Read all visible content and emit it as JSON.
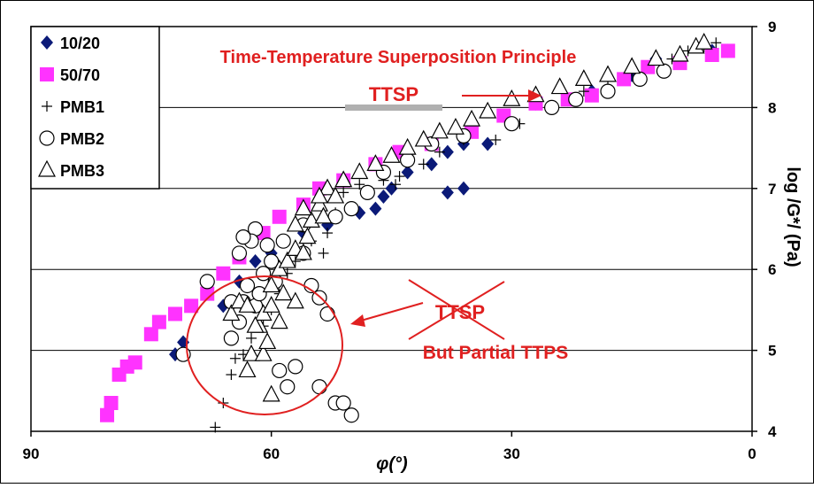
{
  "chart_data": {
    "type": "scatter",
    "title": "",
    "xlabel": "φ(°)",
    "ylabel": "log /G*/ (Pa)",
    "xlim": [
      90,
      0
    ],
    "ylim": [
      4,
      9
    ],
    "x_reversed": true,
    "y_axis_side": "right",
    "x_ticks": [
      "90",
      "60",
      "30",
      "0"
    ],
    "y_ticks": [
      "4",
      "5",
      "6",
      "7",
      "8",
      "9"
    ],
    "grid": "horizontal",
    "legend_position": "top-left",
    "series": [
      {
        "name": "10/20",
        "marker": "diamond",
        "color": "#0b1a78",
        "points": [
          [
            72,
            4.95
          ],
          [
            71,
            5.1
          ],
          [
            66,
            5.55
          ],
          [
            64,
            5.85
          ],
          [
            62,
            6.1
          ],
          [
            60,
            6.2
          ],
          [
            56,
            6.45
          ],
          [
            53,
            6.55
          ],
          [
            49,
            6.7
          ],
          [
            47,
            6.75
          ],
          [
            46,
            6.9
          ],
          [
            45,
            7.0
          ],
          [
            43,
            7.2
          ],
          [
            40,
            7.3
          ],
          [
            38,
            7.45
          ],
          [
            36,
            7.55
          ],
          [
            33,
            7.55
          ],
          [
            30,
            7.8
          ],
          [
            27,
            8.05
          ],
          [
            23,
            8.1
          ],
          [
            20,
            8.2
          ],
          [
            15,
            8.4
          ],
          [
            12,
            8.6
          ],
          [
            9,
            8.6
          ],
          [
            5,
            8.7
          ],
          [
            3,
            8.7
          ],
          [
            38,
            6.95
          ],
          [
            36,
            7.0
          ]
        ]
      },
      {
        "name": "50/70",
        "marker": "square",
        "color": "#ff33ff",
        "points": [
          [
            80.5,
            4.2
          ],
          [
            80,
            4.35
          ],
          [
            79,
            4.7
          ],
          [
            78,
            4.8
          ],
          [
            77,
            4.85
          ],
          [
            75,
            5.2
          ],
          [
            74,
            5.35
          ],
          [
            72,
            5.45
          ],
          [
            70,
            5.55
          ],
          [
            68,
            5.7
          ],
          [
            66,
            5.95
          ],
          [
            64,
            6.15
          ],
          [
            61,
            6.45
          ],
          [
            59,
            6.65
          ],
          [
            56,
            6.8
          ],
          [
            54,
            7.0
          ],
          [
            51,
            7.1
          ],
          [
            47,
            7.3
          ],
          [
            44,
            7.45
          ],
          [
            40,
            7.55
          ],
          [
            35,
            7.7
          ],
          [
            31,
            7.9
          ],
          [
            27,
            8.05
          ],
          [
            23,
            8.1
          ],
          [
            20,
            8.15
          ],
          [
            16,
            8.35
          ],
          [
            13,
            8.5
          ],
          [
            9,
            8.55
          ],
          [
            5,
            8.65
          ],
          [
            3,
            8.7
          ]
        ]
      },
      {
        "name": "PMB1",
        "marker": "plus",
        "color": "#000000",
        "points": [
          [
            67,
            4.05
          ],
          [
            66,
            4.35
          ],
          [
            65,
            4.7
          ],
          [
            64.5,
            4.9
          ],
          [
            63.5,
            4.95
          ],
          [
            63,
            4.75
          ],
          [
            62.5,
            5.15
          ],
          [
            61,
            5.3
          ],
          [
            60,
            5.5
          ],
          [
            59,
            5.7
          ],
          [
            58,
            5.95
          ],
          [
            57,
            6.1
          ],
          [
            55,
            6.35
          ],
          [
            53.5,
            6.2
          ],
          [
            53,
            6.45
          ],
          [
            52,
            6.7
          ],
          [
            51,
            6.95
          ],
          [
            49,
            7.05
          ],
          [
            48,
            6.95
          ],
          [
            46,
            7.1
          ],
          [
            44.5,
            7.05
          ],
          [
            44,
            7.15
          ],
          [
            41,
            7.3
          ],
          [
            39,
            7.45
          ],
          [
            36,
            7.6
          ],
          [
            32,
            7.6
          ],
          [
            29,
            7.8
          ],
          [
            25,
            8.0
          ],
          [
            21,
            8.2
          ],
          [
            18,
            8.35
          ],
          [
            15,
            8.45
          ],
          [
            10,
            8.6
          ],
          [
            8,
            8.7
          ],
          [
            6,
            8.75
          ],
          [
            4.5,
            8.8
          ]
        ]
      },
      {
        "name": "PMB2",
        "marker": "circle",
        "color": "#000000",
        "points": [
          [
            71,
            4.95
          ],
          [
            65,
            5.15
          ],
          [
            64,
            5.35
          ],
          [
            63.5,
            5.6
          ],
          [
            63,
            5.8
          ],
          [
            62,
            5.55
          ],
          [
            61.5,
            5.7
          ],
          [
            61,
            5.95
          ],
          [
            60,
            6.1
          ],
          [
            59.5,
            5.85
          ],
          [
            59,
            4.75
          ],
          [
            58,
            4.55
          ],
          [
            57,
            4.8
          ],
          [
            56,
            6.2
          ],
          [
            55,
            5.8
          ],
          [
            54,
            5.65
          ],
          [
            54,
            4.55
          ],
          [
            53,
            5.45
          ],
          [
            52,
            4.35
          ],
          [
            51,
            4.35
          ],
          [
            50,
            4.2
          ],
          [
            58.5,
            6.35
          ],
          [
            60.5,
            6.3
          ],
          [
            62,
            6.5
          ],
          [
            62.5,
            6.35
          ],
          [
            63.5,
            6.4
          ],
          [
            64,
            6.2
          ],
          [
            65,
            5.6
          ],
          [
            68,
            5.85
          ],
          [
            56,
            6.55
          ],
          [
            52,
            6.65
          ],
          [
            50,
            6.75
          ],
          [
            48,
            6.95
          ],
          [
            46,
            7.2
          ],
          [
            43,
            7.35
          ],
          [
            40,
            7.55
          ],
          [
            36,
            7.65
          ],
          [
            30,
            7.8
          ],
          [
            25,
            8.0
          ],
          [
            22,
            8.1
          ],
          [
            18,
            8.2
          ],
          [
            14,
            8.35
          ],
          [
            11,
            8.45
          ]
        ]
      },
      {
        "name": "PMB3",
        "marker": "triangle",
        "color": "#000000",
        "points": [
          [
            60,
            4.45
          ],
          [
            63,
            4.75
          ],
          [
            62.5,
            4.95
          ],
          [
            61,
            4.95
          ],
          [
            60.5,
            5.1
          ],
          [
            61.5,
            5.3
          ],
          [
            61,
            5.45
          ],
          [
            60,
            5.55
          ],
          [
            59,
            5.35
          ],
          [
            58.5,
            5.7
          ],
          [
            60,
            5.8
          ],
          [
            59,
            6.0
          ],
          [
            58,
            6.1
          ],
          [
            57,
            6.25
          ],
          [
            56,
            6.2
          ],
          [
            55.5,
            6.4
          ],
          [
            55,
            6.6
          ],
          [
            54,
            6.8
          ],
          [
            53,
            7.0
          ],
          [
            52,
            6.9
          ],
          [
            51,
            7.1
          ],
          [
            49,
            7.2
          ],
          [
            47,
            7.3
          ],
          [
            45,
            7.4
          ],
          [
            43,
            7.5
          ],
          [
            41,
            7.6
          ],
          [
            39,
            7.7
          ],
          [
            37,
            7.75
          ],
          [
            35,
            7.85
          ],
          [
            33,
            7.95
          ],
          [
            30,
            8.1
          ],
          [
            27,
            8.15
          ],
          [
            24,
            8.25
          ],
          [
            21,
            8.35
          ],
          [
            18,
            8.4
          ],
          [
            15,
            8.5
          ],
          [
            12,
            8.6
          ],
          [
            9,
            8.65
          ],
          [
            7,
            8.75
          ],
          [
            6,
            8.8
          ],
          [
            65,
            5.45
          ],
          [
            64,
            5.6
          ],
          [
            63,
            5.55
          ],
          [
            62,
            5.3
          ],
          [
            57,
            5.6
          ],
          [
            57,
            6.55
          ],
          [
            56,
            6.75
          ],
          [
            54,
            6.9
          ],
          [
            53.5,
            6.65
          ]
        ]
      }
    ],
    "annotations": {
      "title_text": "Time-Temperature Superposition Principle",
      "ttsp_top": "TTSP",
      "ttsp_struck": "TTSP",
      "partial": "But Partial TTPS"
    }
  }
}
